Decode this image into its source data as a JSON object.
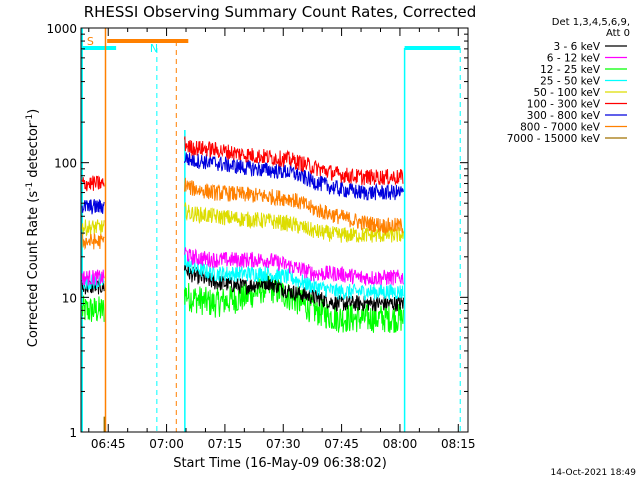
{
  "chart_data": {
    "type": "line",
    "title": "RHESSI Observing Summary Count Rates, Corrected",
    "xlabel": "Start Time (16-May-09 06:38:02)",
    "ylabel": "Corrected Count Rate (s",
    "ylabel_sup1": "-1",
    "ylabel_mid": " detector",
    "ylabel_sup2": "-1",
    "ylabel_end": ")",
    "yscale": "log",
    "ylim": [
      1,
      1000
    ],
    "xlim_minutes": [
      38.0,
      137.5
    ],
    "x_ticks": [
      {
        "label": "06:45",
        "minute": 45
      },
      {
        "label": "07:00",
        "minute": 60
      },
      {
        "label": "07:15",
        "minute": 75
      },
      {
        "label": "07:30",
        "minute": 90
      },
      {
        "label": "07:45",
        "minute": 105
      },
      {
        "label": "08:00",
        "minute": 120
      },
      {
        "label": "08:15",
        "minute": 135
      }
    ],
    "y_ticks": [
      {
        "label": "1",
        "value": 1
      },
      {
        "label": "10",
        "value": 10
      },
      {
        "label": "100",
        "value": 100
      },
      {
        "label": "1000",
        "value": 1000
      }
    ],
    "legend_header": [
      "Det 1,3,4,5,6,9,",
      "Att 0"
    ],
    "legend_placement": "right",
    "data_gaps_minutes": [
      [
        44.0,
        64.5
      ],
      [
        121.0,
        137.5
      ]
    ],
    "series": [
      {
        "name": "3 - 6 keV",
        "color": "#000000",
        "x": [
          38,
          42,
          44,
          64.5,
          66,
          72,
          80,
          86,
          92,
          98,
          104,
          110,
          116,
          120
        ],
        "y": [
          12,
          12,
          12,
          17,
          15,
          13,
          12,
          13,
          11,
          10,
          9,
          9,
          9,
          9
        ]
      },
      {
        "name": "6 - 12 keV",
        "color": "#ff00ff",
        "x": [
          38,
          42,
          44,
          64.5,
          66,
          72,
          80,
          86,
          92,
          98,
          104,
          110,
          116,
          120
        ],
        "y": [
          14,
          14,
          14,
          22,
          20,
          19,
          19,
          19,
          17,
          15,
          15,
          14,
          14,
          14
        ]
      },
      {
        "name": "12 - 25 keV",
        "color": "#00ff00",
        "x": [
          38,
          42,
          44,
          64.5,
          66,
          72,
          80,
          86,
          92,
          98,
          104,
          110,
          116,
          120
        ],
        "y": [
          8,
          8,
          8,
          11,
          10,
          9,
          10,
          12,
          10,
          8,
          7,
          7,
          7,
          7
        ]
      },
      {
        "name": "25 - 50 keV",
        "color": "#00ffff",
        "x": [
          38,
          42,
          44,
          64.5,
          66,
          72,
          80,
          86,
          92,
          98,
          104,
          110,
          116,
          120
        ],
        "y": [
          13,
          13,
          13,
          20,
          17,
          15,
          15,
          15,
          14,
          12,
          11,
          11,
          11,
          11
        ]
      },
      {
        "name": "50 - 100 keV",
        "color": "#dddd00",
        "x": [
          38,
          42,
          44,
          64.5,
          66,
          72,
          80,
          86,
          92,
          98,
          104,
          110,
          116,
          120
        ],
        "y": [
          33,
          33,
          33,
          45,
          42,
          40,
          38,
          37,
          35,
          31,
          29,
          29,
          29,
          29
        ]
      },
      {
        "name": "100 - 300 keV",
        "color": "#ff0000",
        "x": [
          38,
          42,
          44,
          64.5,
          66,
          72,
          80,
          86,
          92,
          98,
          104,
          110,
          116,
          120
        ],
        "y": [
          70,
          70,
          70,
          140,
          130,
          125,
          115,
          110,
          105,
          92,
          82,
          78,
          78,
          78
        ]
      },
      {
        "name": "300 - 800 keV",
        "color": "#0000dd",
        "x": [
          38,
          42,
          44,
          64.5,
          66,
          72,
          80,
          86,
          92,
          98,
          104,
          110,
          116,
          120
        ],
        "y": [
          47,
          47,
          47,
          110,
          105,
          100,
          92,
          88,
          85,
          72,
          64,
          60,
          60,
          60
        ]
      },
      {
        "name": "800 - 7000 keV",
        "color": "#ff8000",
        "x": [
          38,
          42,
          44,
          64.5,
          66,
          72,
          80,
          86,
          92,
          98,
          104,
          110,
          116,
          120
        ],
        "y": [
          26,
          26,
          26,
          70,
          65,
          60,
          58,
          56,
          54,
          45,
          40,
          36,
          34,
          34
        ]
      },
      {
        "name": "7000 - 15000 keV",
        "color": "#a07000",
        "x": [
          44.0,
          44.0
        ],
        "y": [
          1,
          1.3
        ]
      }
    ],
    "annotations": [
      {
        "text": "S",
        "color": "#ff8000"
      },
      {
        "text": "N",
        "color": "#00ffff"
      }
    ]
  },
  "footer_timestamp": "14-Oct-2021 18:49"
}
